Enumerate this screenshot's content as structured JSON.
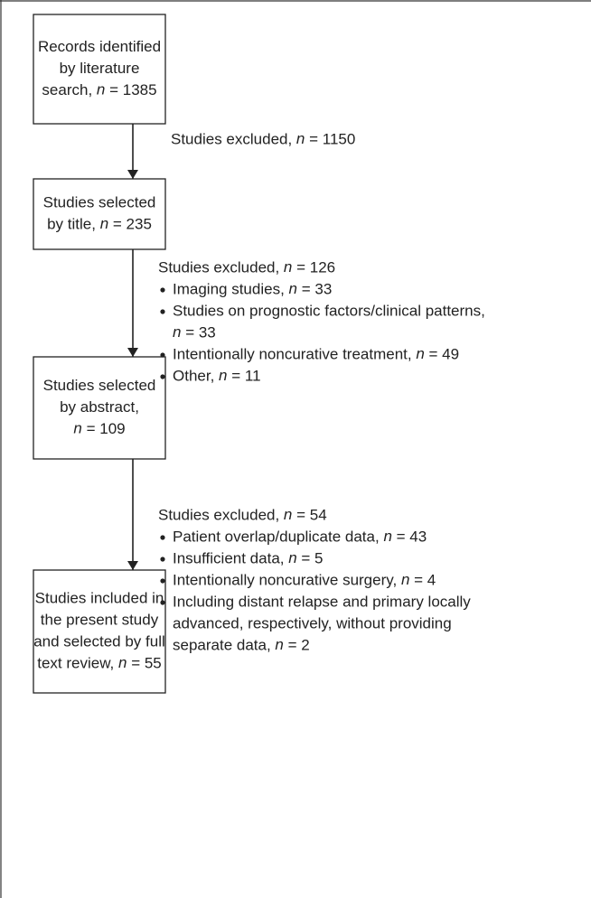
{
  "nodes": [
    {
      "lines": [
        "Records identified",
        "by literature",
        "search, n = 1385"
      ]
    },
    {
      "lines": [
        "Studies selected",
        "by title, n = 235"
      ]
    },
    {
      "lines": [
        "Studies selected",
        "by abstract,",
        "n = 109"
      ]
    },
    {
      "lines": [
        "Studies included in",
        "the present study",
        "and selected by full",
        "text review, n = 55"
      ]
    }
  ],
  "exclusions": [
    {
      "header": "Studies excluded, n = 1150",
      "items": []
    },
    {
      "header": "Studies excluded, n = 126",
      "items": [
        {
          "lines": [
            "Imaging studies, n = 33"
          ]
        },
        {
          "lines": [
            "Studies on prognostic factors/clinical patterns,",
            "n = 33"
          ]
        },
        {
          "lines": [
            "Intentionally noncurative treatment, n = 49"
          ]
        },
        {
          "lines": [
            "Other, n = 11"
          ]
        }
      ]
    },
    {
      "header": "Studies excluded, n = 54",
      "items": [
        {
          "lines": [
            "Patient overlap/duplicate data, n = 43"
          ]
        },
        {
          "lines": [
            "Insufficient data, n = 5"
          ]
        },
        {
          "lines": [
            "Intentionally noncurative surgery, n = 4"
          ]
        },
        {
          "lines": [
            "Including distant relapse and primary locally",
            "advanced, respectively, without providing",
            "separate data, n = 2"
          ]
        }
      ]
    }
  ]
}
